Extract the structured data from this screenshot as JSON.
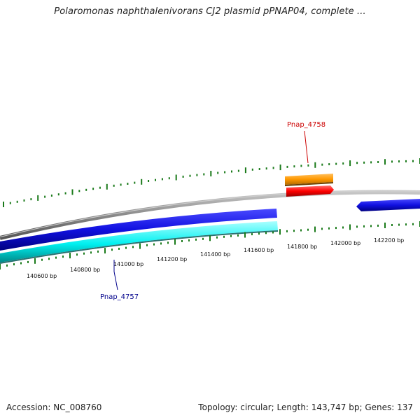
{
  "title": "Polaromonas naphthalenivorans CJ2 plasmid pPNAP04, complete ...",
  "footer": {
    "accession": "Accession: NC_008760",
    "summary": "Topology: circular; Length: 143,747 bp; Genes: 137"
  },
  "map": {
    "tick_labels": [
      "140600 bp",
      "140800 bp",
      "141000 bp",
      "141200 bp",
      "141400 bp",
      "141600 bp",
      "141800 bp",
      "142000 bp",
      "142200 bp"
    ],
    "genes": [
      {
        "name": "Pnap_4757",
        "color": "#00008b"
      },
      {
        "name": "Pnap_4758",
        "color": "#cc0000"
      }
    ],
    "colors": {
      "backbone": "#8a8a8a",
      "forward_gene": "#1010e0",
      "reverse_gene": "#00f0f0",
      "orange_feature": "#ff9900",
      "red_feature": "#ff0000",
      "ticks": "#1a7a1a"
    }
  }
}
